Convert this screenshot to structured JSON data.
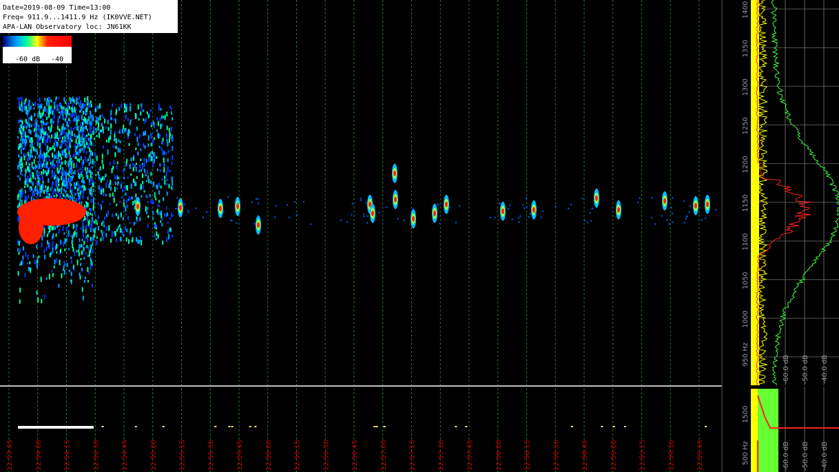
{
  "header": {
    "lines": [
      "Date=2019-08-09 Time=13:00",
      "Freq= 911.9...1411.9 Hz (IK0VVE.NET)",
      "APA-LAN Observatory loc: JN61KK"
    ]
  },
  "colorbar": {
    "labels": [
      "-60 dB",
      "-40"
    ]
  },
  "freq_axis": {
    "ticks": [
      "1400",
      "1350",
      "1300",
      "1250",
      "1200",
      "1150",
      "1100",
      "1050",
      "1000",
      "950 Hz"
    ]
  },
  "db_axis": {
    "ticks": [
      "-60.0 dB",
      "-50.0 dB",
      "-40.0 dB"
    ]
  },
  "lower_freq_axis": {
    "ticks": [
      "1500",
      "500 Hz"
    ]
  },
  "lower_db_axis": {
    "ticks": [
      "-60.0 dB",
      "-50.0 dB",
      "-40.0 dB"
    ]
  },
  "time_axis": {
    "ticks": [
      "12:53:45",
      "12:54:00",
      "12:54:15",
      "12:54:30",
      "12:54:45",
      "12:55:00",
      "12:55:15",
      "12:55:30",
      "12:55:45",
      "12:56:00",
      "12:56:15",
      "12:56:30",
      "12:56:45",
      "12:57:00",
      "12:57:15",
      "12:57:30",
      "12:57:45",
      "12:58:00",
      "12:58:15",
      "12:58:30",
      "12:58:45",
      "12:59:00",
      "12:59:15",
      "12:59:30",
      "12:59:45"
    ]
  }
}
